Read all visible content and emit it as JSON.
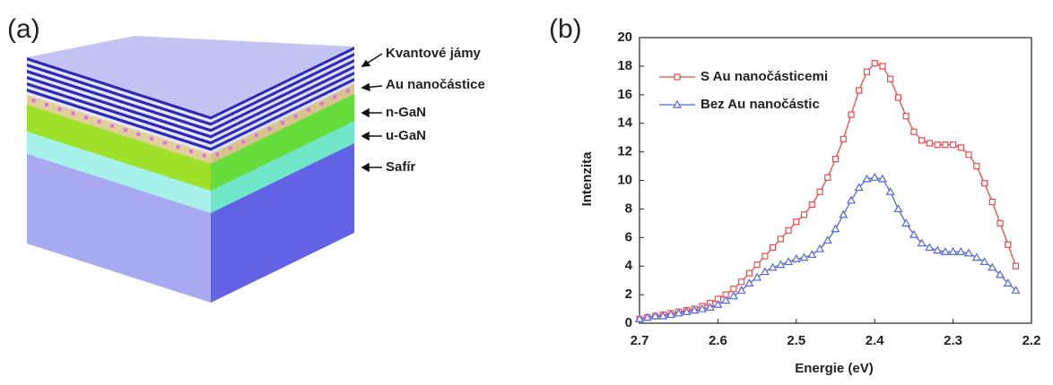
{
  "panel_a": {
    "panel_label": "(a)",
    "layer_labels": [
      "Kvantové jámy",
      "Au nanočástice",
      "n-GaN",
      "u-GaN",
      "Safír"
    ]
  },
  "chart_data": {
    "type": "line",
    "panel_label": "(b)",
    "x_label": "Energie (eV)",
    "y_label": "Intenzita",
    "x": [
      2.7,
      2.69,
      2.68,
      2.67,
      2.66,
      2.65,
      2.64,
      2.63,
      2.62,
      2.61,
      2.6,
      2.59,
      2.58,
      2.57,
      2.56,
      2.55,
      2.54,
      2.53,
      2.52,
      2.51,
      2.5,
      2.49,
      2.48,
      2.47,
      2.46,
      2.45,
      2.44,
      2.43,
      2.42,
      2.41,
      2.4,
      2.39,
      2.38,
      2.37,
      2.36,
      2.35,
      2.34,
      2.33,
      2.32,
      2.31,
      2.3,
      2.29,
      2.28,
      2.27,
      2.26,
      2.25,
      2.24,
      2.23,
      2.22
    ],
    "series": [
      {
        "name": "S Au nanočásticemi",
        "color": "#f0484c",
        "marker": "square",
        "values": [
          0.3,
          0.4,
          0.5,
          0.6,
          0.7,
          0.8,
          0.9,
          1.0,
          1.2,
          1.4,
          1.7,
          2.0,
          2.4,
          2.9,
          3.5,
          4.1,
          4.7,
          5.3,
          5.9,
          6.5,
          7.1,
          7.6,
          8.3,
          9.2,
          10.2,
          11.5,
          12.9,
          14.6,
          16.3,
          17.6,
          18.2,
          18.0,
          17.1,
          15.8,
          14.5,
          13.4,
          12.8,
          12.6,
          12.5,
          12.5,
          12.5,
          12.3,
          11.8,
          11.0,
          9.8,
          8.5,
          7.0,
          5.5,
          4.0
        ]
      },
      {
        "name": "Bez Au nanočástic",
        "color": "#5566e0",
        "marker": "triangle",
        "values": [
          0.3,
          0.4,
          0.5,
          0.5,
          0.6,
          0.7,
          0.8,
          0.9,
          1.0,
          1.1,
          1.3,
          1.6,
          1.9,
          2.3,
          2.8,
          3.2,
          3.6,
          3.9,
          4.1,
          4.3,
          4.5,
          4.6,
          4.8,
          5.2,
          5.8,
          6.6,
          7.6,
          8.6,
          9.5,
          10.1,
          10.2,
          10.1,
          9.2,
          8.0,
          7.0,
          6.2,
          5.6,
          5.3,
          5.1,
          5.0,
          5.0,
          5.0,
          4.9,
          4.6,
          4.3,
          3.9,
          3.4,
          2.8,
          2.3
        ]
      }
    ],
    "xlim": [
      2.7,
      2.2
    ],
    "xticks": [
      2.7,
      2.6,
      2.5,
      2.4,
      2.3,
      2.2
    ],
    "ylim": [
      0,
      20
    ],
    "yticks": [
      0,
      2,
      4,
      6,
      8,
      10,
      12,
      14,
      16,
      18,
      20
    ],
    "grid": false,
    "legend": "upper-left"
  }
}
